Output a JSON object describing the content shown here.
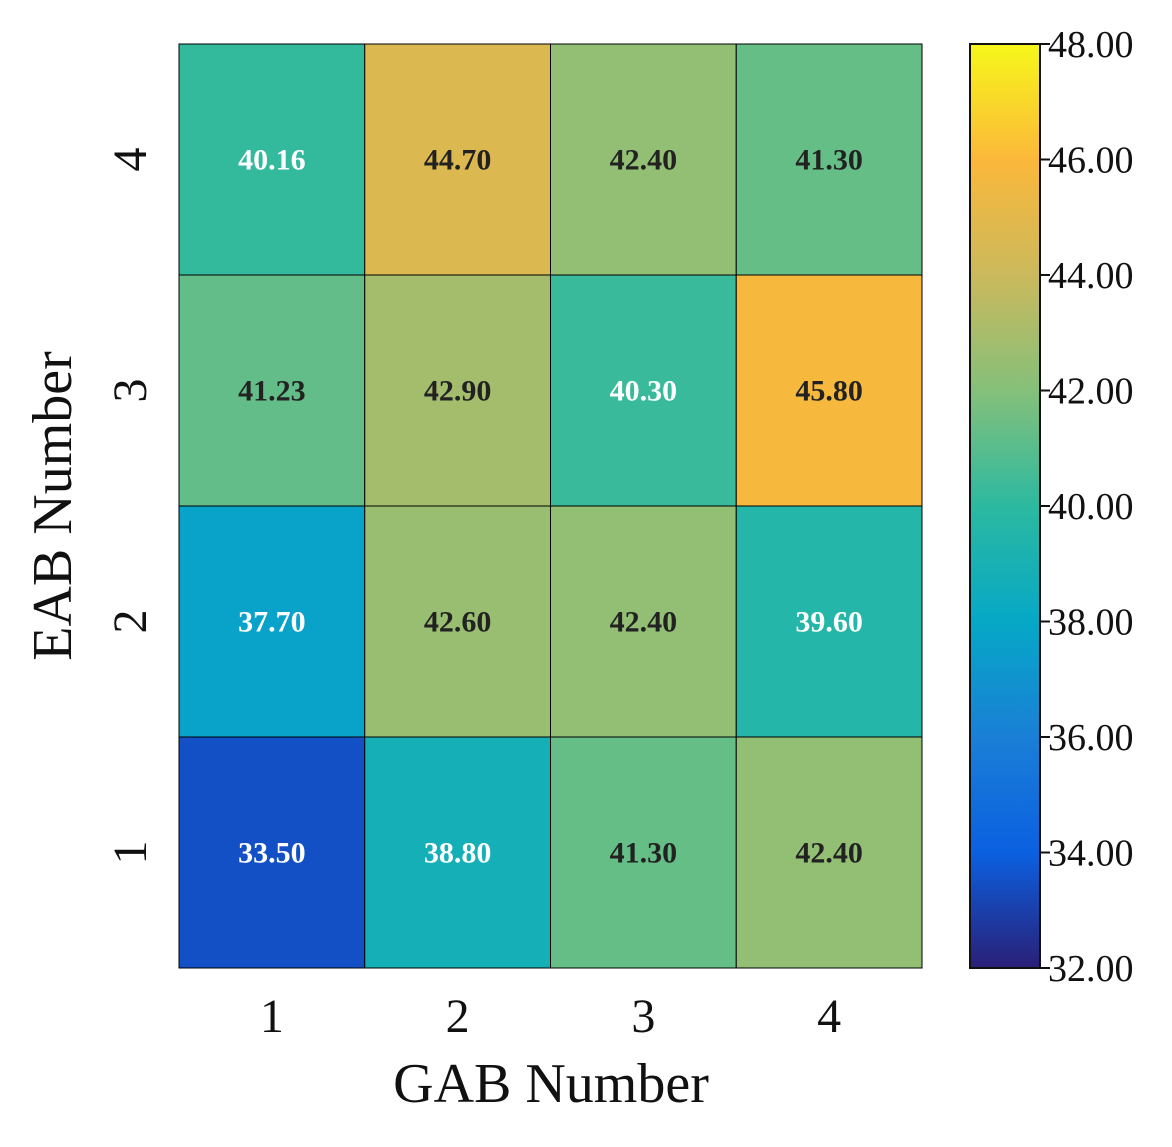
{
  "chart_data": {
    "type": "heatmap",
    "xlabel": "GAB Number",
    "ylabel": "EAB Number",
    "x_categories": [
      "1",
      "2",
      "3",
      "4"
    ],
    "y_categories": [
      "1",
      "2",
      "3",
      "4"
    ],
    "values": [
      [
        33.5,
        38.8,
        41.3,
        42.4
      ],
      [
        37.7,
        42.6,
        42.4,
        39.6
      ],
      [
        41.23,
        42.9,
        40.3,
        45.8
      ],
      [
        40.16,
        44.7,
        42.4,
        41.3
      ]
    ],
    "value_format": "2 decimals",
    "colorbar": {
      "min": 32.0,
      "max": 48.0,
      "ticks": [
        "32.00",
        "34.00",
        "36.00",
        "38.00",
        "40.00",
        "42.00",
        "44.00",
        "46.00",
        "48.00"
      ]
    },
    "colormap": [
      {
        "value": 32.0,
        "color": "#2a1f77"
      },
      {
        "value": 34.0,
        "color": "#0b60e0"
      },
      {
        "value": 36.0,
        "color": "#1a7fd6"
      },
      {
        "value": 38.0,
        "color": "#06a8c6"
      },
      {
        "value": 40.0,
        "color": "#2cb9a0"
      },
      {
        "value": 42.0,
        "color": "#85c07a"
      },
      {
        "value": 44.0,
        "color": "#cbb95c"
      },
      {
        "value": 46.0,
        "color": "#fbb83a"
      },
      {
        "value": 48.0,
        "color": "#f6f71a"
      }
    ],
    "text_colors": {
      "light": "#ffffff",
      "dark": "#222222"
    },
    "text_dark_threshold": 41.0,
    "grid": true,
    "legend": "none"
  }
}
